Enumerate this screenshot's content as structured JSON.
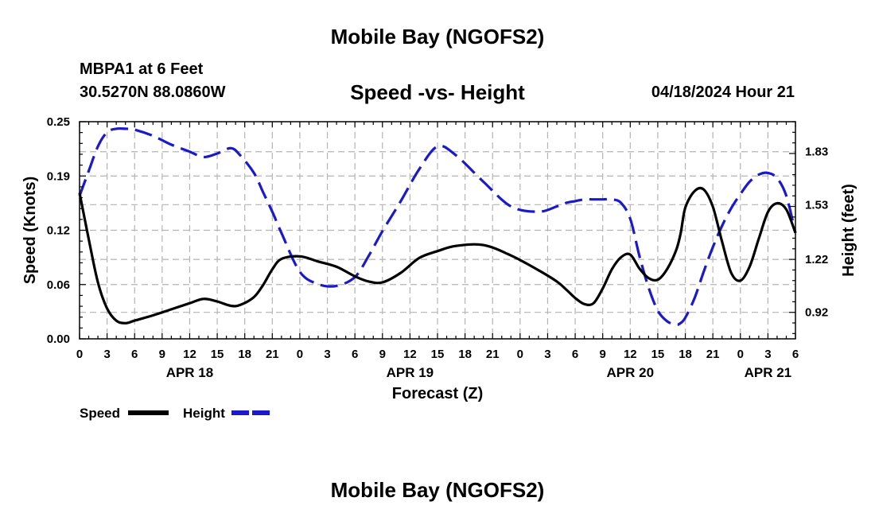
{
  "colors": {
    "speed": "#000000",
    "height": "#1a1acc",
    "grid": "#b4b4b4"
  },
  "chart_data": {
    "type": "line",
    "title": "Mobile Bay (NGOFS2)",
    "subtitle": "Speed -vs- Height",
    "station": "MBPA1 at 6 Feet",
    "coordinates": "30.5270N  88.0860W",
    "datetime": "04/18/2024 Hour 21",
    "footer_title": "Mobile Bay (NGOFS2)",
    "xlabel": "Forecast (Z)",
    "ylabel_left": "Speed (Knots)",
    "ylabel_right": "Height (feet)",
    "xlim": [
      0,
      78
    ],
    "ylim_left": [
      0,
      0.25
    ],
    "ylim_right": [
      0.77,
      2.0
    ],
    "x_ticks": [
      0,
      3,
      6,
      9,
      12,
      15,
      18,
      21,
      24,
      27,
      30,
      33,
      36,
      39,
      42,
      45,
      48,
      51,
      54,
      57,
      60,
      63,
      66,
      69,
      72,
      75,
      78
    ],
    "x_tick_labels": [
      "0",
      "3",
      "6",
      "9",
      "12",
      "15",
      "18",
      "21",
      "0",
      "3",
      "6",
      "9",
      "12",
      "15",
      "18",
      "21",
      "0",
      "3",
      "6",
      "9",
      "12",
      "15",
      "18",
      "21",
      "0",
      "3",
      "6"
    ],
    "date_labels": [
      {
        "x": 12,
        "text": "APR 18"
      },
      {
        "x": 36,
        "text": "APR 19"
      },
      {
        "x": 60,
        "text": "APR 20"
      },
      {
        "x": 75,
        "text": "APR 21"
      }
    ],
    "y_left_ticks": [
      0.0,
      0.0625,
      0.125,
      0.1875,
      0.25
    ],
    "y_left_tick_labels": [
      "0.00",
      "0.06",
      "0.12",
      "0.19",
      "0.25"
    ],
    "y_right_ticks": [
      0.92,
      1.22,
      1.53,
      1.83
    ],
    "y_right_tick_labels": [
      "0.92",
      "1.22",
      "1.53",
      "1.83"
    ],
    "grid": true,
    "legend": {
      "position": "bottom-left",
      "entries": [
        "Speed",
        "Height"
      ]
    },
    "series": [
      {
        "name": "Speed",
        "axis": "left",
        "style": "solid",
        "x": [
          0,
          1,
          2,
          3,
          4,
          5,
          6,
          8,
          10,
          12,
          13.5,
          15,
          16.5,
          17.5,
          19,
          20,
          21,
          22,
          24,
          26,
          28,
          30,
          31.5,
          33,
          35,
          37,
          39,
          41,
          44,
          47,
          50,
          52,
          53,
          54,
          55,
          56,
          57,
          58,
          59,
          60,
          61,
          62,
          63,
          64,
          65,
          65.5,
          66,
          67,
          68,
          69,
          70,
          71,
          72,
          73,
          74,
          75,
          76,
          77,
          78
        ],
        "values": [
          0.168,
          0.115,
          0.065,
          0.035,
          0.021,
          0.018,
          0.021,
          0.027,
          0.034,
          0.041,
          0.046,
          0.043,
          0.038,
          0.039,
          0.048,
          0.062,
          0.08,
          0.092,
          0.095,
          0.089,
          0.083,
          0.072,
          0.066,
          0.065,
          0.076,
          0.093,
          0.101,
          0.107,
          0.108,
          0.096,
          0.079,
          0.066,
          0.057,
          0.047,
          0.04,
          0.041,
          0.058,
          0.08,
          0.094,
          0.097,
          0.081,
          0.07,
          0.068,
          0.08,
          0.102,
          0.122,
          0.151,
          0.17,
          0.172,
          0.152,
          0.112,
          0.076,
          0.067,
          0.083,
          0.115,
          0.146,
          0.156,
          0.149,
          0.122
        ]
      },
      {
        "name": "Height",
        "axis": "right",
        "style": "dashed",
        "x": [
          0,
          1,
          2,
          3,
          4,
          5,
          6,
          8,
          10,
          12,
          13.5,
          15,
          16.5,
          17.5,
          19,
          20,
          21,
          22,
          24,
          26,
          28,
          30,
          31.5,
          33,
          35,
          37,
          39,
          41,
          44,
          47,
          50,
          52,
          53,
          54,
          55,
          56,
          57,
          58,
          59,
          60,
          61,
          62,
          63,
          64,
          65,
          65.5,
          66,
          67,
          68,
          69,
          70,
          71,
          72,
          73,
          74,
          75,
          76,
          77,
          78
        ],
        "values": [
          1.58,
          1.72,
          1.86,
          1.94,
          1.96,
          1.96,
          1.955,
          1.92,
          1.87,
          1.83,
          1.8,
          1.82,
          1.85,
          1.81,
          1.71,
          1.6,
          1.49,
          1.37,
          1.15,
          1.08,
          1.07,
          1.12,
          1.24,
          1.38,
          1.55,
          1.73,
          1.86,
          1.81,
          1.66,
          1.52,
          1.49,
          1.52,
          1.54,
          1.55,
          1.56,
          1.56,
          1.56,
          1.56,
          1.54,
          1.45,
          1.24,
          1.06,
          0.93,
          0.87,
          0.85,
          0.86,
          0.89,
          1.0,
          1.15,
          1.29,
          1.41,
          1.51,
          1.59,
          1.66,
          1.7,
          1.71,
          1.68,
          1.58,
          1.37
        ]
      }
    ]
  }
}
